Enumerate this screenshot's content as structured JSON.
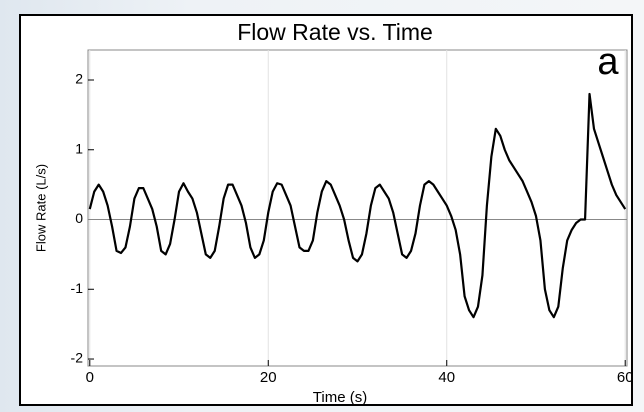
{
  "chart_data": {
    "type": "line",
    "title": "Flow Rate vs. Time",
    "annotation": "a",
    "x_label": "Time (s)",
    "y_label": "Flow Rate (L/s)",
    "xlim": [
      -0.2,
      60.2
    ],
    "ylim": [
      -2.1,
      2.43
    ],
    "xticks": [
      0,
      20,
      40,
      60
    ],
    "yticks": [
      -2,
      -1,
      0,
      1,
      2
    ],
    "xgrid": true,
    "zero_line": true,
    "x": [
      0,
      0.5,
      1,
      1.5,
      2,
      2.5,
      3,
      3.5,
      4,
      4.5,
      5,
      5.5,
      6,
      6.5,
      7,
      7.5,
      8,
      8.5,
      9,
      9.5,
      10,
      10.5,
      11,
      11.5,
      12,
      12.5,
      13,
      13.5,
      14,
      14.5,
      15,
      15.5,
      16,
      16.5,
      17,
      17.5,
      18,
      18.5,
      19,
      19.5,
      20,
      20.5,
      21,
      21.5,
      22,
      22.5,
      23,
      23.5,
      24,
      24.5,
      25,
      25.5,
      26,
      26.5,
      27,
      27.5,
      28,
      28.5,
      29,
      29.5,
      30,
      30.5,
      31,
      31.5,
      32,
      32.5,
      33,
      33.5,
      34,
      34.5,
      35,
      35.5,
      36,
      36.5,
      37,
      37.5,
      38,
      38.5,
      39,
      39.5,
      40,
      40.5,
      41,
      41.5,
      42,
      42.5,
      43,
      43.5,
      44,
      44.5,
      45,
      45.5,
      46,
      46.5,
      47,
      47.5,
      48,
      48.5,
      49,
      49.5,
      50,
      50.5,
      51,
      51.5,
      52,
      52.5,
      53,
      53.5,
      54,
      54.5,
      55,
      55.5,
      56,
      56.5,
      57,
      57.5,
      58,
      58.5,
      59,
      59.5,
      60
    ],
    "series": [
      {
        "name": "Flow Rate",
        "color": "#000000",
        "values": [
          0.15,
          0.4,
          0.5,
          0.4,
          0.2,
          -0.1,
          -0.45,
          -0.48,
          -0.4,
          -0.1,
          0.3,
          0.45,
          0.45,
          0.3,
          0.15,
          -0.1,
          -0.45,
          -0.5,
          -0.35,
          0,
          0.4,
          0.52,
          0.4,
          0.3,
          0.1,
          -0.2,
          -0.5,
          -0.55,
          -0.45,
          -0.1,
          0.3,
          0.5,
          0.5,
          0.35,
          0.2,
          -0.05,
          -0.4,
          -0.55,
          -0.5,
          -0.3,
          0.1,
          0.4,
          0.52,
          0.5,
          0.35,
          0.2,
          -0.1,
          -0.4,
          -0.45,
          -0.45,
          -0.3,
          0.1,
          0.4,
          0.55,
          0.5,
          0.35,
          0.2,
          0,
          -0.3,
          -0.55,
          -0.6,
          -0.5,
          -0.2,
          0.2,
          0.45,
          0.5,
          0.4,
          0.3,
          0.1,
          -0.2,
          -0.5,
          -0.55,
          -0.45,
          -0.2,
          0.2,
          0.5,
          0.55,
          0.5,
          0.4,
          0.3,
          0.2,
          0.05,
          -0.15,
          -0.5,
          -1.1,
          -1.3,
          -1.4,
          -1.25,
          -0.8,
          0.2,
          0.9,
          1.3,
          1.2,
          1.0,
          0.85,
          0.75,
          0.65,
          0.55,
          0.4,
          0.25,
          0.05,
          -0.3,
          -1.0,
          -1.3,
          -1.4,
          -1.25,
          -0.7,
          -0.3,
          -0.15,
          -0.05,
          0,
          0,
          1.8,
          1.3,
          1.1,
          0.9,
          0.7,
          0.5,
          0.35,
          0.25,
          0.15
        ]
      }
    ]
  }
}
